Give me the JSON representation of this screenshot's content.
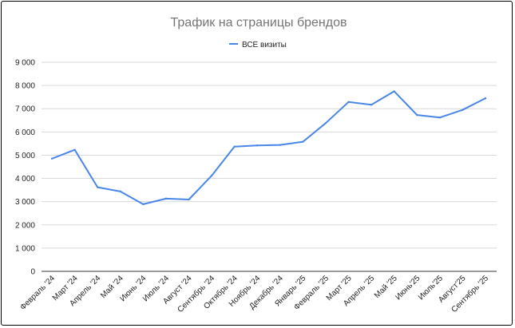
{
  "chart_data": {
    "type": "line",
    "title": "Трафик на страницы брендов",
    "xlabel": "",
    "ylabel": "",
    "ylim": [
      0,
      9000
    ],
    "yticks": [
      0,
      1000,
      2000,
      3000,
      4000,
      5000,
      6000,
      7000,
      8000,
      9000
    ],
    "ytick_labels": [
      "0",
      "1 000",
      "2 000",
      "3 000",
      "4 000",
      "5 000",
      "6 000",
      "7 000",
      "8 000",
      "9 000"
    ],
    "categories": [
      "Февраль '24",
      "Март '24",
      "Апрель '24",
      "Май '24",
      "Июнь '24",
      "Июль '24",
      "Август '24",
      "Сентябрь '24",
      "Октябрь '24",
      "Ноябрь '24",
      "Декабрь '24",
      "Январь '25",
      "Февраль '25",
      "Март '25",
      "Апрель '25",
      "Май '25",
      "Июнь'25",
      "Июль'25",
      "Август'25",
      "Сентябрь '25"
    ],
    "series": [
      {
        "name": "ВСЕ визиты",
        "color": "#4a86e8",
        "values": [
          4850,
          5230,
          3620,
          3440,
          2890,
          3130,
          3090,
          4120,
          5370,
          5420,
          5440,
          5580,
          6380,
          7290,
          7170,
          7750,
          6730,
          6620,
          6950,
          7450
        ]
      }
    ],
    "legend_position": "top",
    "grid": true
  }
}
